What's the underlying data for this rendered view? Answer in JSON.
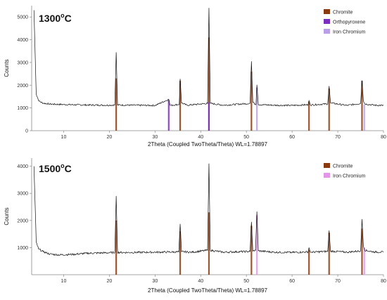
{
  "chart_data": [
    {
      "type": "line",
      "title": "1300",
      "title_suffix": "o",
      "title_unit": "C",
      "xlabel": "2Theta (Coupled TwoTheta/Theta) WL=1.78897",
      "ylabel": "Counts",
      "xlim": [
        3,
        80
      ],
      "ylim": [
        0,
        5500
      ],
      "xticks": [
        10,
        20,
        30,
        40,
        50,
        60,
        70,
        80
      ],
      "yticks": [
        0,
        1000,
        2000,
        3000,
        4000,
        5000
      ],
      "legend_position": "top-right",
      "baseline": 1120,
      "series": [
        {
          "name": "Chromite",
          "color": "#8b3a0f",
          "peaks": [
            [
              21.5,
              2300
            ],
            [
              35.5,
              2200
            ],
            [
              41.8,
              4100
            ],
            [
              51.1,
              2600
            ],
            [
              63.7,
              1280
            ],
            [
              68.1,
              1850
            ],
            [
              75.3,
              2200
            ]
          ]
        },
        {
          "name": "Orthopyroxene",
          "color": "#7b2fbe",
          "peaks": [
            [
              33.0,
              1350
            ],
            [
              41.8,
              1260
            ]
          ]
        },
        {
          "name": "Iron Chromium",
          "color": "#b9a0e6",
          "peaks": [
            [
              52.3,
              1900
            ],
            [
              75.8,
              1150
            ]
          ]
        }
      ],
      "trace": [
        [
          3.5,
          5300
        ],
        [
          4.0,
          1600
        ],
        [
          4.6,
          1300
        ],
        [
          5.5,
          1210
        ],
        [
          7,
          1170
        ],
        [
          10,
          1150
        ],
        [
          15,
          1130
        ],
        [
          20,
          1120
        ],
        [
          21.2,
          1130
        ],
        [
          21.5,
          3450
        ],
        [
          21.8,
          1130
        ],
        [
          25,
          1120
        ],
        [
          30,
          1110
        ],
        [
          33.0,
          1380
        ],
        [
          33.3,
          1110
        ],
        [
          35.3,
          1160
        ],
        [
          35.5,
          2280
        ],
        [
          35.8,
          1220
        ],
        [
          37,
          1120
        ],
        [
          41.5,
          1200
        ],
        [
          41.8,
          5400
        ],
        [
          42.1,
          1200
        ],
        [
          45,
          1120
        ],
        [
          50.8,
          1200
        ],
        [
          51.1,
          3050
        ],
        [
          51.4,
          1250
        ],
        [
          52.1,
          1150
        ],
        [
          52.3,
          2020
        ],
        [
          52.6,
          1150
        ],
        [
          56,
          1120
        ],
        [
          60,
          1110
        ],
        [
          63.5,
          1140
        ],
        [
          63.7,
          1320
        ],
        [
          64,
          1130
        ],
        [
          67.8,
          1180
        ],
        [
          68.1,
          1960
        ],
        [
          68.4,
          1220
        ],
        [
          72,
          1110
        ],
        [
          75.0,
          1200
        ],
        [
          75.3,
          2200
        ],
        [
          75.6,
          1300
        ],
        [
          75.9,
          1180
        ],
        [
          78,
          1120
        ],
        [
          80,
          1110
        ]
      ]
    },
    {
      "type": "line",
      "title": "1500",
      "title_suffix": "o",
      "title_unit": "C",
      "xlabel": "2Theta (Coupled TwoTheta/Theta) WL=1.78897",
      "ylabel": "Counts",
      "xlim": [
        3,
        80
      ],
      "ylim": [
        0,
        4300
      ],
      "xticks": [
        10,
        20,
        30,
        40,
        50,
        60,
        70,
        80
      ],
      "yticks": [
        1000,
        2000,
        3000,
        4000
      ],
      "legend_position": "top-right",
      "baseline": 820,
      "series": [
        {
          "name": "Chromite",
          "color": "#8b3a0f",
          "peaks": [
            [
              21.5,
              2000
            ],
            [
              35.5,
              1600
            ],
            [
              41.8,
              2300
            ],
            [
              51.1,
              1800
            ],
            [
              63.7,
              920
            ],
            [
              68.1,
              1550
            ],
            [
              75.3,
              1700
            ]
          ]
        },
        {
          "name": "Iron Chromium",
          "color": "#e495e8",
          "peaks": [
            [
              52.3,
              2200
            ],
            [
              75.8,
              1000
            ]
          ]
        }
      ],
      "trace": [
        [
          3.5,
          4000
        ],
        [
          4.0,
          1200
        ],
        [
          4.5,
          950
        ],
        [
          5.5,
          850
        ],
        [
          7,
          760
        ],
        [
          9,
          730
        ],
        [
          12,
          750
        ],
        [
          15,
          790
        ],
        [
          20,
          810
        ],
        [
          21.2,
          820
        ],
        [
          21.5,
          2900
        ],
        [
          21.8,
          820
        ],
        [
          25,
          820
        ],
        [
          30,
          830
        ],
        [
          35.2,
          840
        ],
        [
          35.5,
          1870
        ],
        [
          35.8,
          850
        ],
        [
          38,
          830
        ],
        [
          41.5,
          900
        ],
        [
          41.8,
          4100
        ],
        [
          42.1,
          900
        ],
        [
          45,
          830
        ],
        [
          50.8,
          860
        ],
        [
          51.1,
          1950
        ],
        [
          51.4,
          870
        ],
        [
          52.0,
          900
        ],
        [
          52.3,
          2330
        ],
        [
          52.6,
          880
        ],
        [
          56,
          830
        ],
        [
          60,
          820
        ],
        [
          63.5,
          840
        ],
        [
          63.7,
          1000
        ],
        [
          64,
          830
        ],
        [
          67.8,
          860
        ],
        [
          68.1,
          1630
        ],
        [
          68.4,
          870
        ],
        [
          72,
          830
        ],
        [
          75.0,
          880
        ],
        [
          75.3,
          2050
        ],
        [
          75.6,
          1050
        ],
        [
          75.9,
          900
        ],
        [
          78,
          840
        ],
        [
          80,
          830
        ]
      ]
    }
  ]
}
